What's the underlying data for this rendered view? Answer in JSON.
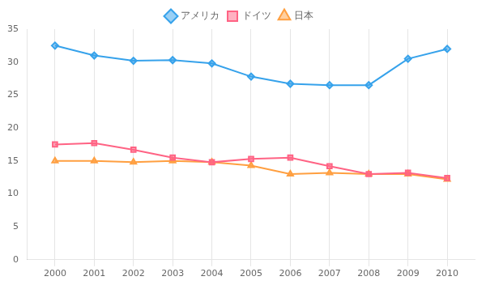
{
  "chart_data": {
    "type": "line",
    "x": [
      2000,
      2001,
      2002,
      2003,
      2004,
      2005,
      2006,
      2007,
      2008,
      2009,
      2010
    ],
    "series": [
      {
        "name": "アメリカ",
        "marker": "diamond",
        "values": [
          32.5,
          31.0,
          30.2,
          30.3,
          29.8,
          27.8,
          26.7,
          26.5,
          26.5,
          30.5,
          32.0
        ]
      },
      {
        "name": "ドイツ",
        "marker": "square",
        "values": [
          17.5,
          17.7,
          16.7,
          15.5,
          14.8,
          15.3,
          15.5,
          14.2,
          13.0,
          13.2,
          12.4
        ]
      },
      {
        "name": "日本",
        "marker": "triangle",
        "values": [
          15.0,
          15.0,
          14.8,
          15.0,
          14.8,
          14.3,
          13.0,
          13.2,
          13.0,
          13.0,
          12.2
        ]
      }
    ],
    "xlim": [
      1999.3,
      2010.7
    ],
    "xticks": [
      2000,
      2001,
      2002,
      2003,
      2004,
      2005,
      2006,
      2007,
      2008,
      2009,
      2010
    ],
    "ylim": [
      0,
      35
    ],
    "yticks": [
      0,
      5,
      10,
      15,
      20,
      25,
      30,
      35
    ],
    "grid": "x",
    "legend": "top"
  }
}
